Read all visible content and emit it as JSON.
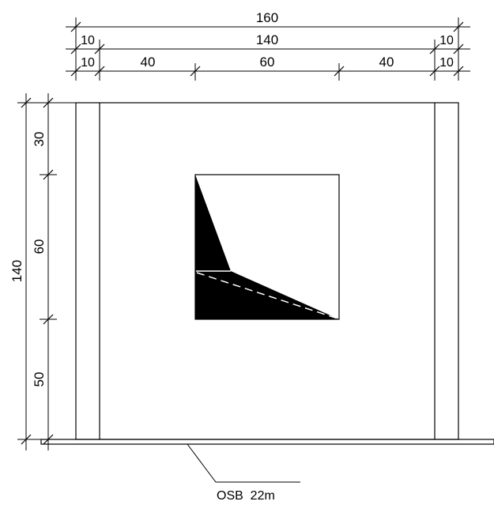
{
  "drawing": {
    "dimensions_top": {
      "overall": "160",
      "row2": {
        "left": "10",
        "middle": "140",
        "right": "10"
      },
      "row3": {
        "left_post": "10",
        "left_bay": "40",
        "window": "60",
        "right_bay": "40",
        "right_post": "10"
      }
    },
    "dimensions_left": {
      "overall": "140",
      "top": "30",
      "window": "60",
      "bottom": "50"
    },
    "material_label": "OSB  22m"
  }
}
